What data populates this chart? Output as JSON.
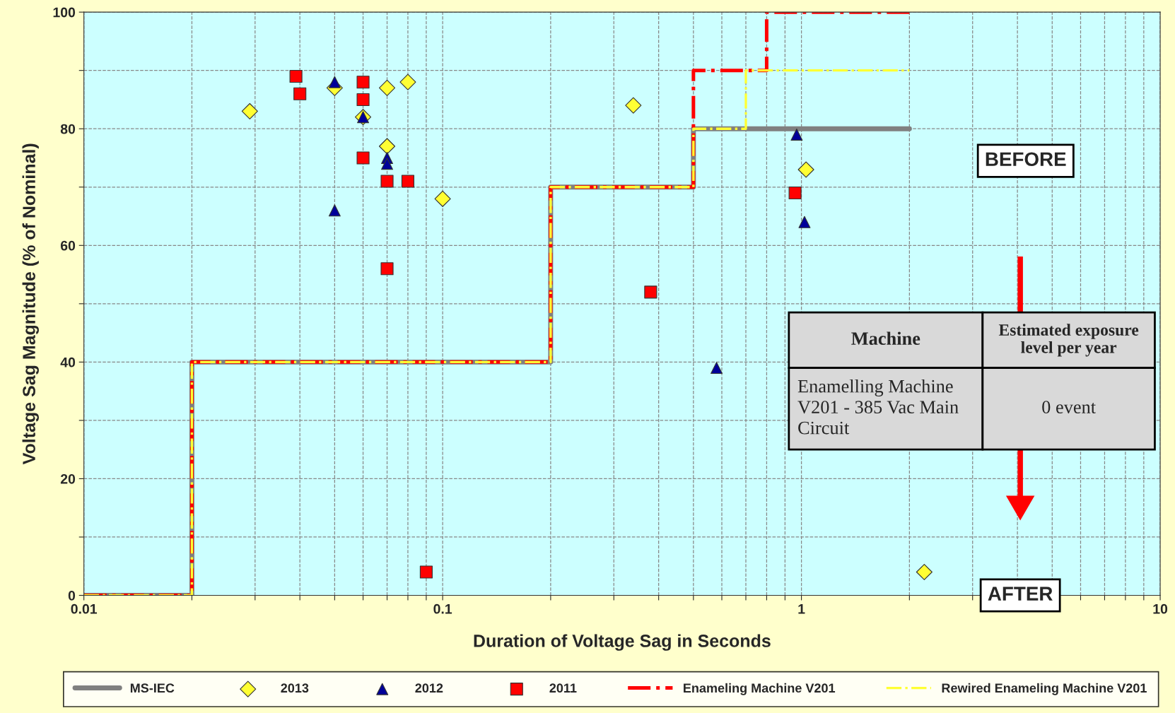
{
  "chart_data": {
    "type": "scatter",
    "xlabel": "Duration of Voltage Sag in Seconds",
    "ylabel": "Voltage Sag Magnitude (% of Nominal)",
    "log": "x",
    "xlim": [
      0.01,
      10
    ],
    "xticks": [
      0.01,
      {
        "value": 0.02,
        "label": null
      },
      {
        "value": 0.03,
        "label": null
      },
      {
        "value": 0.04,
        "label": null
      },
      {
        "value": 0.05,
        "label": null
      },
      {
        "value": 0.06,
        "label": null
      },
      {
        "value": 0.07,
        "label": null
      },
      {
        "value": 0.08,
        "label": null
      },
      {
        "value": 0.09,
        "label": null
      },
      0.1,
      {
        "value": 0.2,
        "label": null
      },
      {
        "value": 0.3,
        "label": null
      },
      {
        "value": 0.4,
        "label": null
      },
      {
        "value": 0.5,
        "label": null
      },
      {
        "value": 0.6,
        "label": null
      },
      {
        "value": 0.7,
        "label": null
      },
      {
        "value": 0.8,
        "label": null
      },
      {
        "value": 0.9,
        "label": null
      },
      1,
      {
        "value": 2,
        "label": null
      },
      {
        "value": 3,
        "label": null
      },
      {
        "value": 4,
        "label": null
      },
      {
        "value": 5,
        "label": null
      },
      {
        "value": 6,
        "label": null
      },
      {
        "value": 7,
        "label": null
      },
      {
        "value": 8,
        "label": null
      },
      {
        "value": 9,
        "label": null
      },
      10
    ],
    "ylim": [
      0,
      100
    ],
    "yticks": [
      0,
      {
        "value": 10,
        "label": null
      },
      20,
      {
        "value": 30,
        "label": null
      },
      40,
      {
        "value": 50,
        "label": null
      },
      60,
      {
        "value": 70,
        "label": null
      },
      80,
      {
        "value": 90,
        "label": null
      },
      100
    ],
    "grid": true,
    "legend": "bottom",
    "series": [
      {
        "name": "MS-IEC",
        "type": "line",
        "color": "#808080",
        "line_style": "solid",
        "marker": "none",
        "x": [
          0.01,
          0.02,
          0.02,
          0.2,
          0.2,
          0.5,
          0.5,
          2
        ],
        "values": [
          0,
          0,
          40,
          40,
          70,
          70,
          80,
          80
        ]
      },
      {
        "name": "2013",
        "color": "#ffff33",
        "marker": "diamond",
        "x": [
          0.029,
          0.05,
          0.06,
          0.07,
          0.07,
          0.08,
          0.1,
          0.34,
          1.03,
          2.2
        ],
        "values": [
          83,
          87,
          82,
          77,
          87,
          88,
          68,
          84,
          73,
          4
        ]
      },
      {
        "name": "2012",
        "color": "#000099",
        "marker": "triangle",
        "x": [
          0.05,
          0.05,
          0.06,
          0.07,
          0.07,
          0.58,
          0.97,
          1.02
        ],
        "values": [
          88,
          66,
          82,
          75,
          74,
          39,
          79,
          64
        ]
      },
      {
        "name": "2011",
        "color": "#ff0000",
        "marker": "square",
        "x": [
          0.039,
          0.04,
          0.06,
          0.06,
          0.06,
          0.07,
          0.08,
          0.07,
          0.09,
          0.38,
          0.96
        ],
        "values": [
          89,
          86,
          88,
          85,
          75,
          71,
          71,
          56,
          4,
          52,
          69
        ]
      },
      {
        "name": "Enameling Machine V201",
        "type": "line",
        "color": "#ff0000",
        "line_style": "dashdot",
        "marker": "none",
        "x": [
          0.01,
          0.02,
          0.02,
          0.2,
          0.2,
          0.5,
          0.5,
          0.8,
          0.8,
          2
        ],
        "values": [
          0,
          0,
          40,
          40,
          70,
          70,
          90,
          90,
          100,
          100
        ]
      },
      {
        "name": "Rewired Enameling Machine V201",
        "type": "line",
        "color": "#ffff33",
        "line_style": "dashdot",
        "marker": "none",
        "x": [
          0.01,
          0.02,
          0.02,
          0.2,
          0.2,
          0.5,
          0.5,
          0.7,
          0.7,
          2
        ],
        "values": [
          0,
          0,
          40,
          40,
          70,
          70,
          80,
          80,
          90,
          90
        ]
      }
    ],
    "annotations": [
      "BEFORE",
      "AFTER",
      "Machine",
      "Estimated exposure level per year",
      "Enamelling Machine V201 - 385 Vac Main Circuit",
      "0 event"
    ]
  }
}
